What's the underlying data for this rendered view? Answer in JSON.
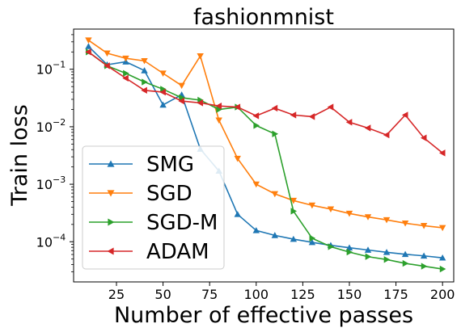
{
  "chart_data": {
    "type": "line",
    "title": "fashionmnist",
    "xlabel": "Number of effective passes",
    "ylabel": "Train loss",
    "yscale": "log",
    "xlim": [
      2,
      206
    ],
    "ylim": [
      2e-05,
      0.5
    ],
    "xticks": [
      25,
      50,
      75,
      100,
      125,
      150,
      175,
      200
    ],
    "xtick_labels": [
      "25",
      "50",
      "75",
      "100",
      "125",
      "150",
      "175",
      "200"
    ],
    "yticks": [
      0.0001,
      0.001,
      0.01,
      0.1
    ],
    "ytick_labels": [
      [
        "10",
        "−4"
      ],
      [
        "10",
        "−3"
      ],
      [
        "10",
        "−2"
      ],
      [
        "10",
        "−1"
      ]
    ],
    "legend_position": "lower-left",
    "grid": false,
    "x": [
      10,
      20,
      30,
      40,
      50,
      60,
      70,
      80,
      90,
      100,
      110,
      120,
      130,
      140,
      150,
      160,
      170,
      180,
      190,
      200
    ],
    "series": [
      {
        "name": "SMG",
        "color": "#1f77b4",
        "marker": "triangle-up",
        "values": [
          0.25,
          0.12,
          0.135,
          0.095,
          0.024,
          0.036,
          0.0041,
          0.0017,
          0.0003,
          0.000157,
          0.000129,
          0.000111,
          9.75e-05,
          8.67e-05,
          7.87e-05,
          7.18e-05,
          6.56e-05,
          6.05e-05,
          5.68e-05,
          5.25e-05
        ]
      },
      {
        "name": "SGD",
        "color": "#ff7f0e",
        "marker": "triangle-down",
        "values": [
          0.32,
          0.19,
          0.155,
          0.14,
          0.085,
          0.052,
          0.17,
          0.013,
          0.0028,
          0.001,
          0.00068,
          0.00052,
          0.00043,
          0.00037,
          0.00031,
          0.00027,
          0.00024,
          0.00021,
          0.00019,
          0.000175
        ]
      },
      {
        "name": "SGD-M",
        "color": "#2ca02c",
        "marker": "triangle-right",
        "values": [
          0.2,
          0.115,
          0.085,
          0.06,
          0.045,
          0.032,
          0.029,
          0.02,
          0.022,
          0.0105,
          0.0075,
          0.00034,
          0.000115,
          8.2e-05,
          6.6e-05,
          5.5e-05,
          4.9e-05,
          4.2e-05,
          3.75e-05,
          3.35e-05
        ]
      },
      {
        "name": "ADAM",
        "color": "#d62728",
        "marker": "triangle-left",
        "values": [
          0.2,
          0.115,
          0.07,
          0.043,
          0.04,
          0.028,
          0.026,
          0.023,
          0.022,
          0.0155,
          0.021,
          0.016,
          0.015,
          0.022,
          0.012,
          0.0095,
          0.0072,
          0.016,
          0.0064,
          0.0035
        ]
      }
    ]
  }
}
